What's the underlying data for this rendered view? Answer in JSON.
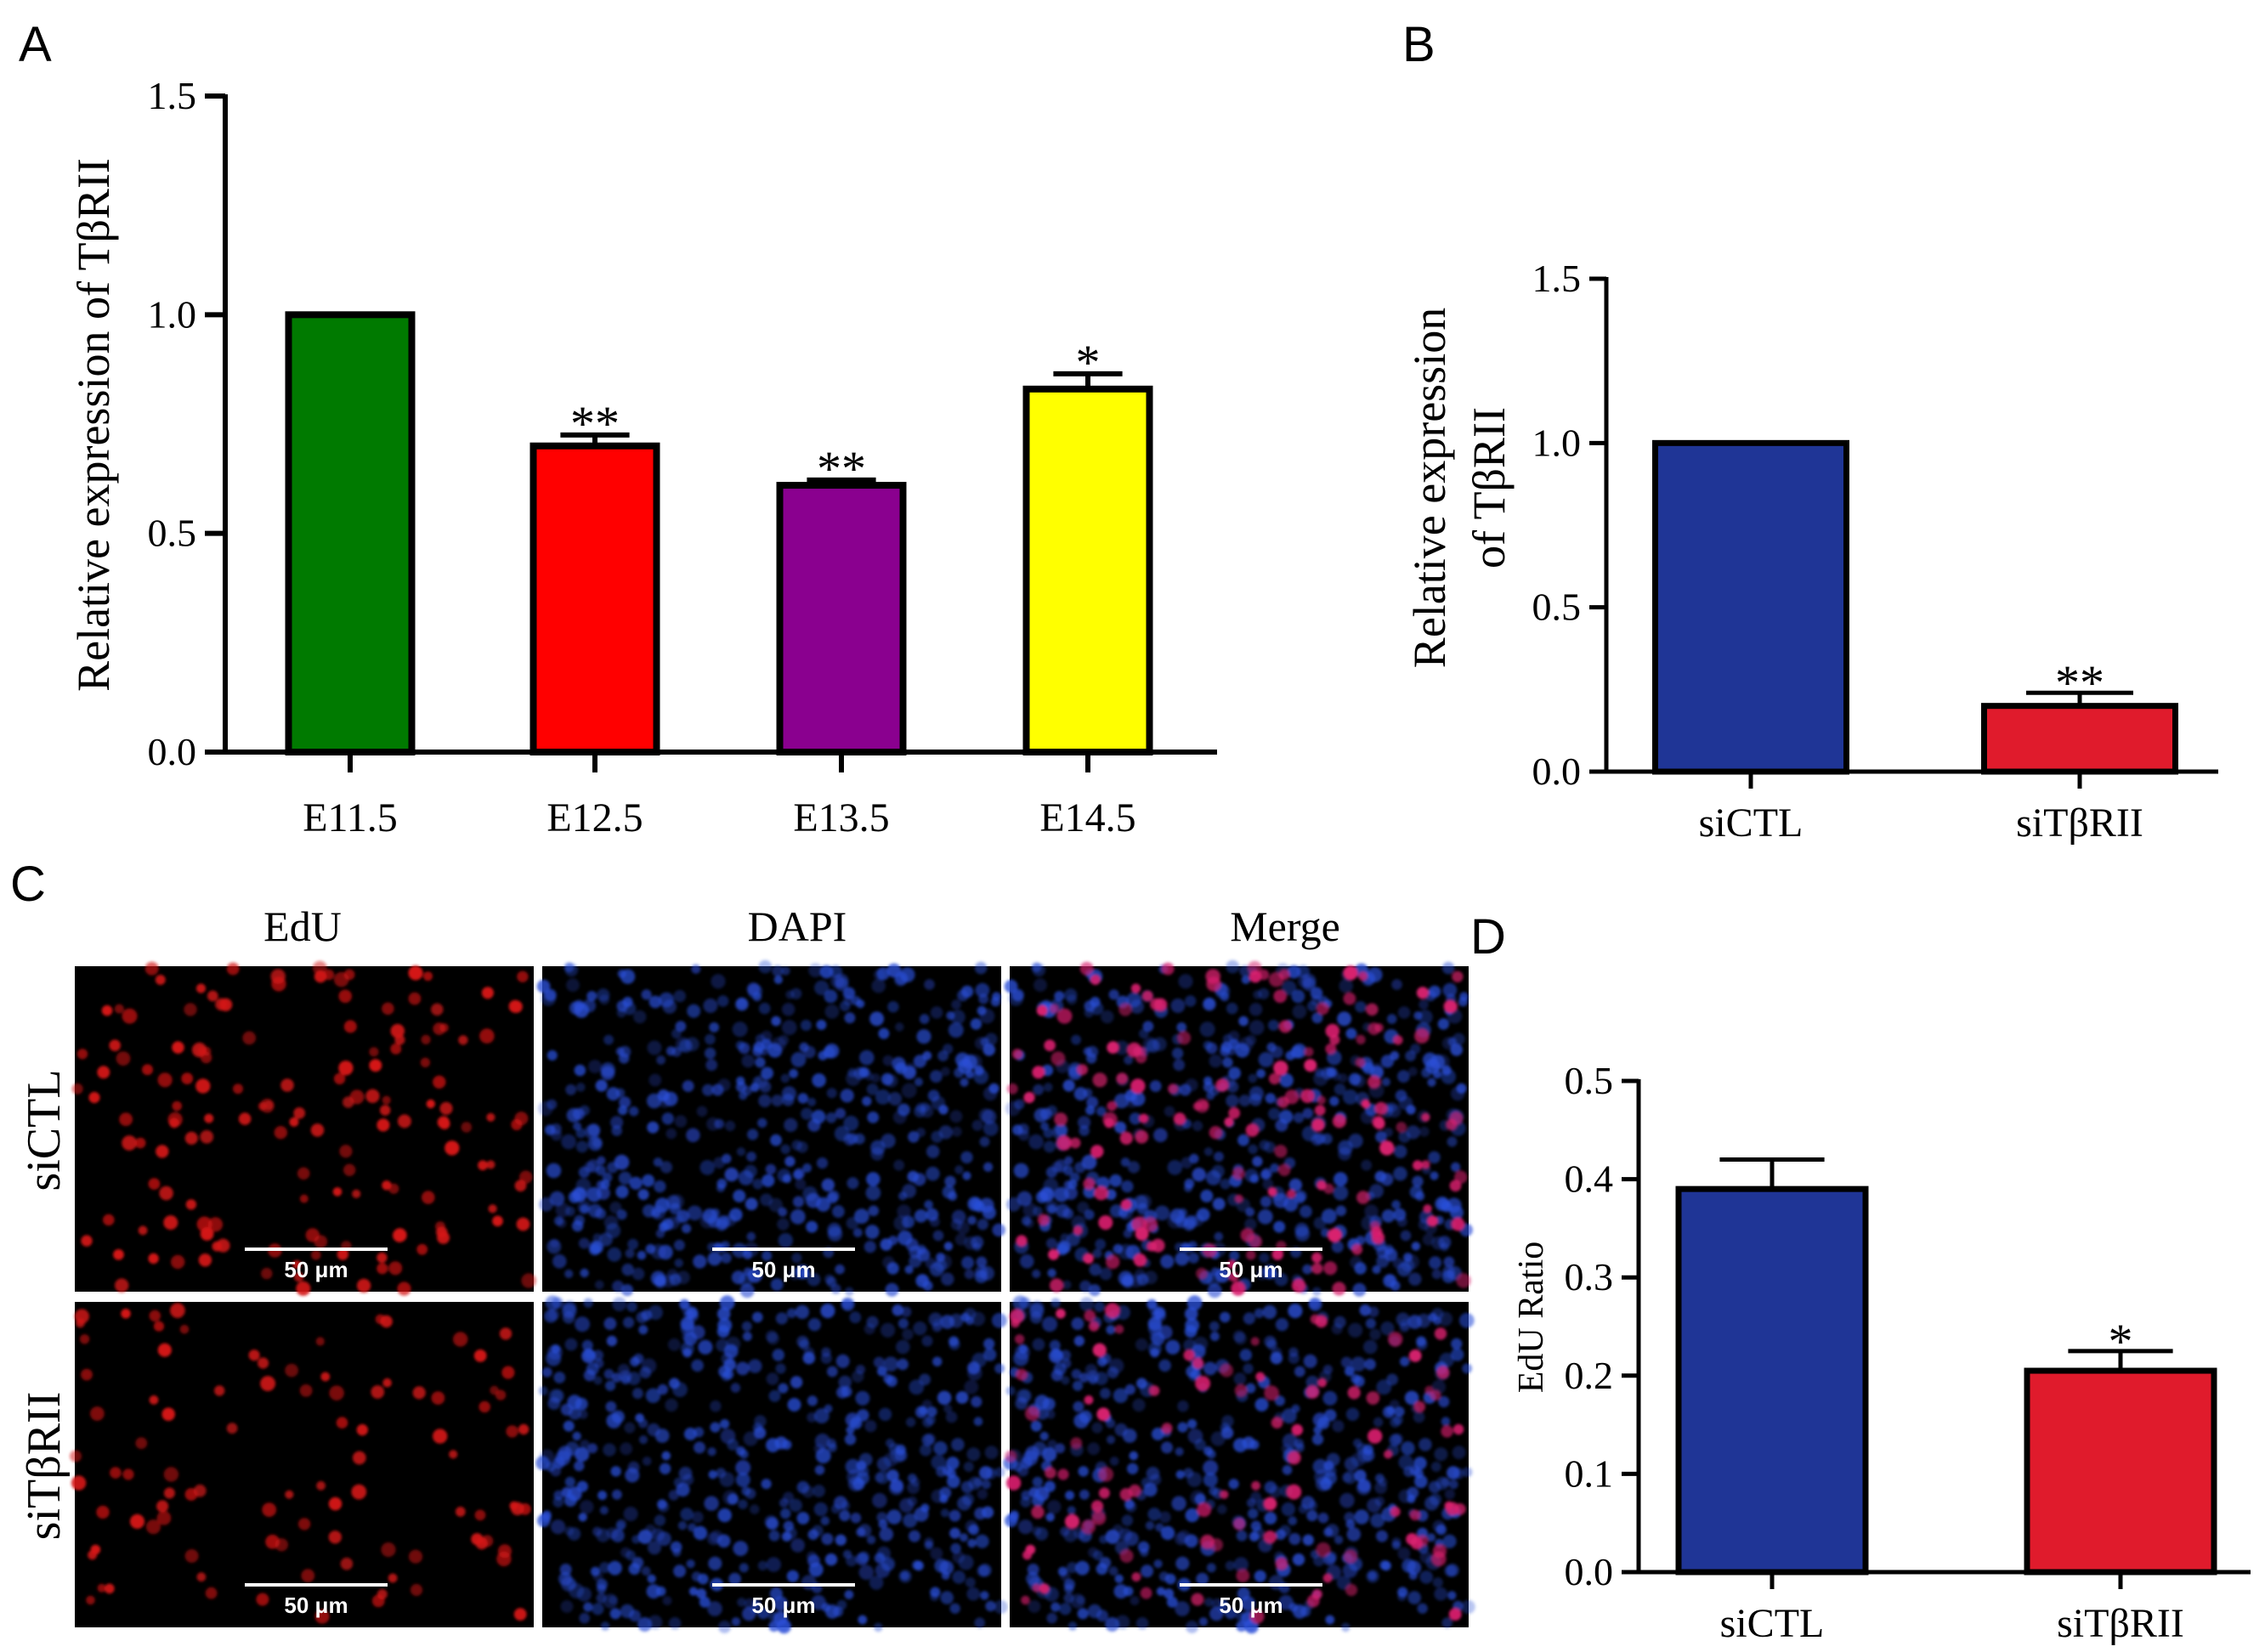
{
  "panel_letters": {
    "a": "A",
    "b": "B",
    "c": "C",
    "d": "D"
  },
  "colors": {
    "E11.5": "#007a00",
    "E12.5": "#ff0000",
    "E13.5": "#8a008f",
    "E14.5": "#ffff00",
    "siCTL": "#1f3596",
    "siTbRII": "#e01b2c"
  },
  "chart_data": [
    {
      "id": "A",
      "type": "bar",
      "categories": [
        "E11.5",
        "E12.5",
        "E13.5",
        "E14.5"
      ],
      "values": [
        1.0,
        0.7,
        0.61,
        0.83
      ],
      "errors": [
        0.0,
        0.025,
        0.012,
        0.035
      ],
      "significance": [
        "",
        "**",
        "**",
        "*"
      ],
      "colors": [
        "#007a00",
        "#ff0000",
        "#8a008f",
        "#ffff00"
      ],
      "ylabel": "Relative expression of TβRII",
      "ylim": [
        0,
        1.5
      ],
      "yticks": [
        "0.0",
        "0.5",
        "1.0",
        "1.5"
      ]
    },
    {
      "id": "B",
      "type": "bar",
      "categories": [
        "siCTL",
        "siTβRII"
      ],
      "values": [
        1.0,
        0.2
      ],
      "errors": [
        0.0,
        0.04
      ],
      "significance": [
        "",
        "**"
      ],
      "colors": [
        "#1f3596",
        "#e01b2c"
      ],
      "ylabel_lines": [
        "Relative expression",
        "of TβRII"
      ],
      "ylim": [
        0,
        1.5
      ],
      "yticks": [
        "0.0",
        "0.5",
        "1.0",
        "1.5"
      ]
    },
    {
      "id": "D",
      "type": "bar",
      "categories": [
        "siCTL",
        "siTβRII"
      ],
      "values": [
        0.39,
        0.205
      ],
      "errors": [
        0.03,
        0.02
      ],
      "significance": [
        "",
        "*"
      ],
      "colors": [
        "#1f3596",
        "#e01b2c"
      ],
      "ylabel": "EdU Ratio",
      "ylim": [
        0,
        0.5
      ],
      "yticks": [
        "0.0",
        "0.1",
        "0.2",
        "0.3",
        "0.4",
        "0.5"
      ]
    }
  ],
  "microscopy": {
    "columns": [
      "EdU",
      "DAPI",
      "Merge"
    ],
    "rows": [
      "siCTL",
      "siTβRII"
    ],
    "scale_bar": "50 μm"
  }
}
